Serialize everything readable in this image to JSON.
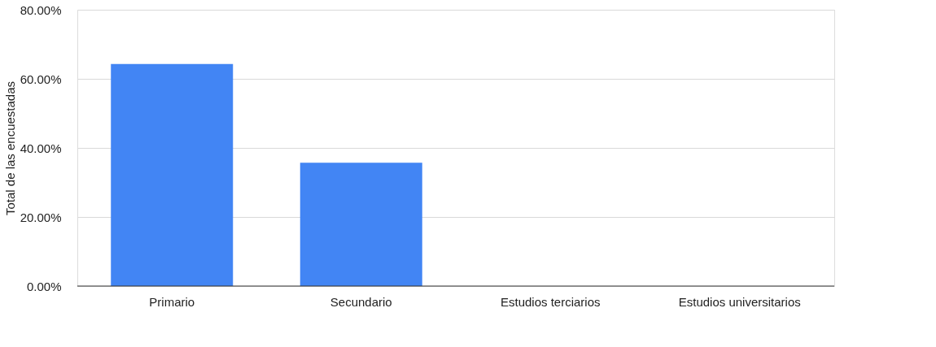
{
  "chart_data": {
    "type": "bar",
    "ylabel": "Total de las encuestadas",
    "categories": [
      "Primario",
      "Secundario",
      "Estudios terciarios",
      "Estudios universitarios"
    ],
    "values": [
      64.3,
      35.7,
      0,
      0
    ],
    "color": "#4285f4",
    "ylim": [
      0,
      80
    ],
    "yticks": [
      {
        "value": 0,
        "label": "0.00%"
      },
      {
        "value": 20,
        "label": "20.00%"
      },
      {
        "value": 40,
        "label": "40.00%"
      },
      {
        "value": 60,
        "label": "60.00%"
      },
      {
        "value": 80,
        "label": "80.00%"
      }
    ],
    "grid": "y"
  }
}
